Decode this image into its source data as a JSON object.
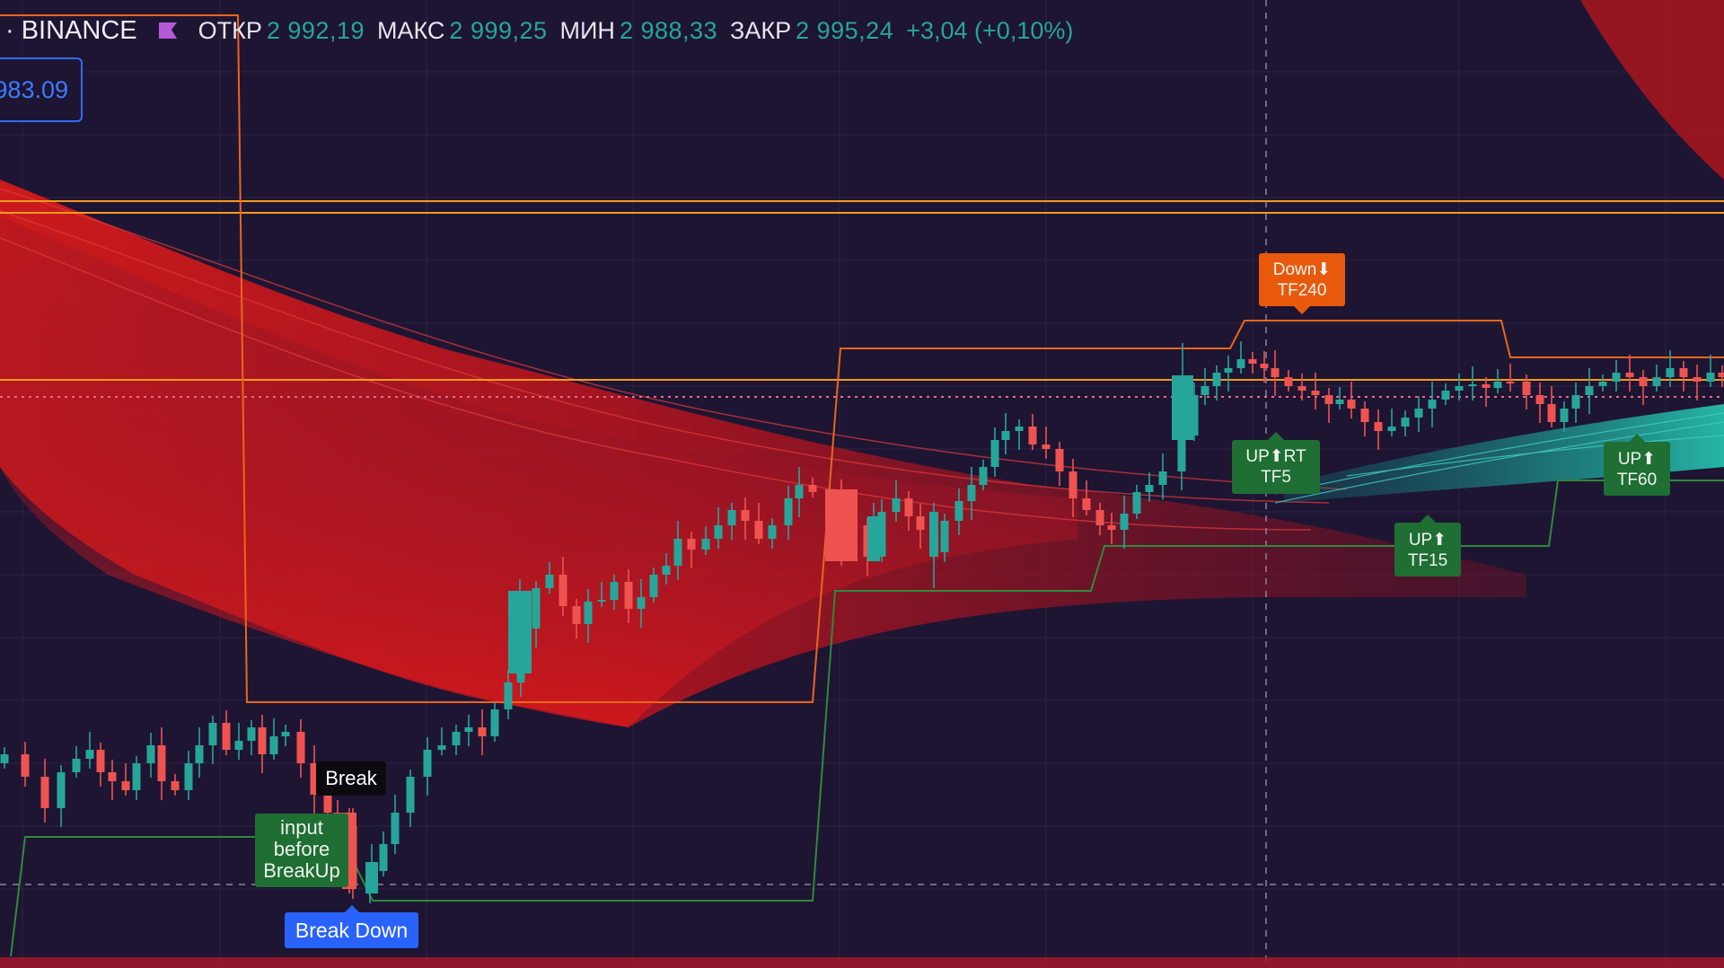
{
  "header": {
    "symbol": "· BINANCE",
    "open_label": "ОТКР",
    "open_value": "2 992,19",
    "high_label": "МАКС",
    "high_value": "2 999,25",
    "low_label": "МИН",
    "low_value": "2 988,33",
    "close_label": "ЗАКР",
    "close_value": "2 995,24",
    "change": "+3,04 (+0,10%)"
  },
  "price_box": "983.09",
  "signals": {
    "down_tf240": [
      "Down⬇",
      "TF240"
    ],
    "up_rt_tf5": [
      "UP⬆RT",
      "TF5"
    ],
    "up_tf15": [
      "UP⬆",
      "TF15"
    ],
    "up_tf60": [
      "UP⬆",
      "TF60"
    ]
  },
  "labels": {
    "break": "Break",
    "input_before_breakup": [
      "input",
      "before",
      "BreakUp"
    ],
    "break_down": "Break Down"
  },
  "colors": {
    "background": "#1e1533",
    "bull_candle": "#26a69a",
    "bear_candle": "#ef5350",
    "signal_green": "#1f6e33",
    "signal_orange": "#e8590c",
    "break_down_blue": "#2962ff"
  },
  "chart_data": {
    "type": "candlestick",
    "symbol": "BINANCE",
    "ohlc_last": {
      "open": 2992.19,
      "high": 2999.25,
      "low": 2988.33,
      "close": 2995.24
    },
    "change_abs": 3.04,
    "change_pct": 0.1,
    "price_marker": 983.09
  }
}
